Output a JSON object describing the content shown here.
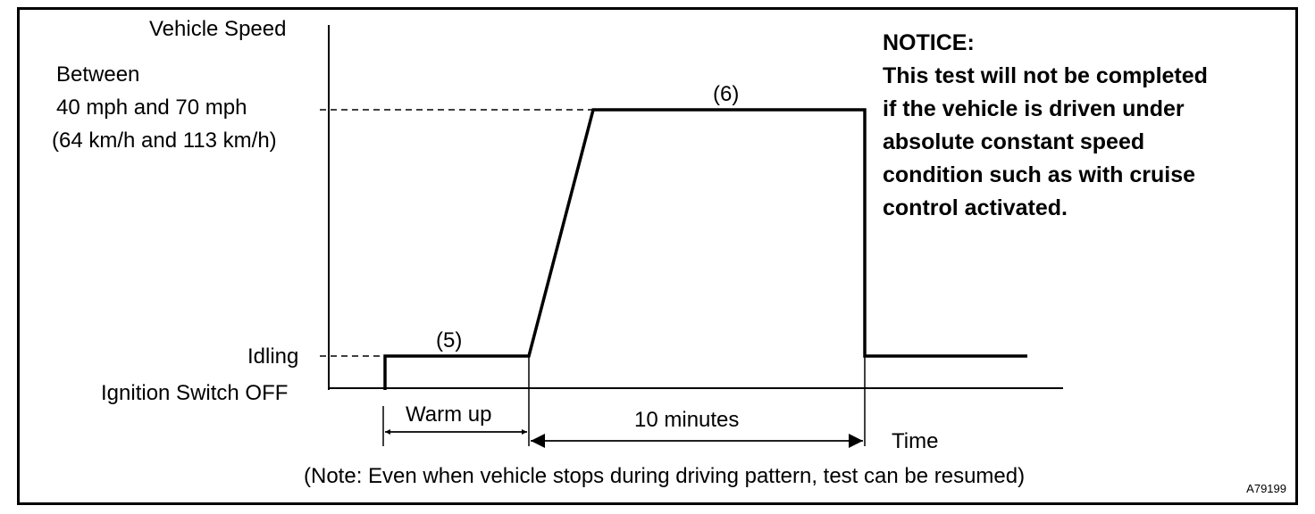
{
  "axis": {
    "y_title": "Vehicle Speed",
    "x_title": "Time"
  },
  "levels": {
    "high": {
      "line1": "Between",
      "line2": "40 mph and 70 mph",
      "line3": "(64 km/h and 113 km/h)"
    },
    "idle": "Idling",
    "off": "Ignition Switch OFF"
  },
  "steps": {
    "step5": "(5)",
    "step6": "(6)"
  },
  "durations": {
    "warm_up": "Warm up",
    "drive": "10 minutes"
  },
  "notice": {
    "title": "NOTICE:",
    "lines": [
      "This test will not be completed",
      "if the vehicle is driven under",
      "absolute constant speed",
      "condition such as with cruise",
      "control activated."
    ]
  },
  "note": "(Note: Even when vehicle stops during driving pattern, test can be resumed)",
  "figure_id": "A79199"
}
